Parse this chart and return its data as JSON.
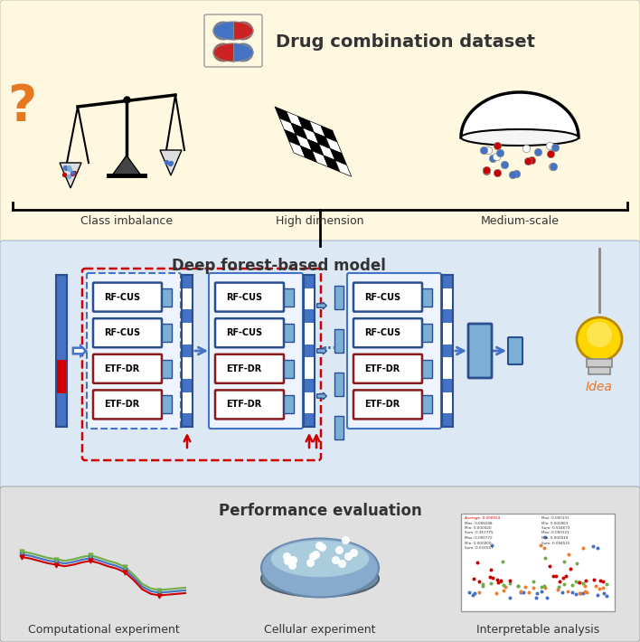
{
  "title_top": "Drug combination dataset",
  "title_middle": "Deep forest-based model",
  "title_bottom": "Performance evaluation",
  "label_class_imbalance": "Class imbalance",
  "label_high_dimension": "High dimension",
  "label_medium_scale": "Medium-scale",
  "label_comp_exp": "Computational experiment",
  "label_cell_exp": "Cellular experiment",
  "label_interp": "Interpretable analysis",
  "rf_cus_label": "RF-CUS",
  "etf_dr_label": "ETF-DR",
  "bg_top": "#FFF8E1",
  "bg_middle": "#DDE8F5",
  "bg_bottom": "#E0E0E0",
  "blue_dark": "#2B4F8E",
  "blue_mid": "#4472C4",
  "blue_light": "#7BAFD4",
  "red_dark": "#8B1A1A",
  "red_mid": "#CC0000",
  "orange_q": "#E87722"
}
